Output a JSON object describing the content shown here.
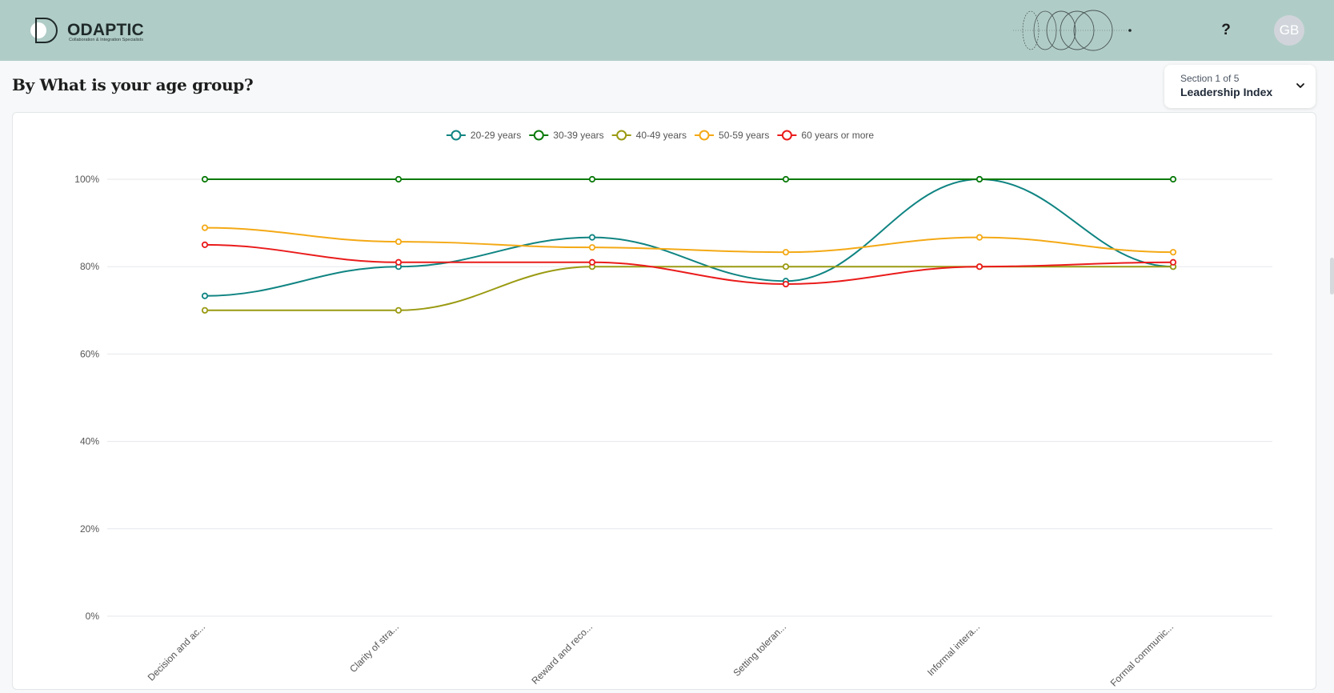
{
  "header": {
    "logo_text": "ODAPTIC",
    "logo_tagline": "Collaboration & Integration Specialists",
    "help_label": "?",
    "avatar_initials": "GB"
  },
  "page": {
    "title": "By What is your age group?"
  },
  "section_selector": {
    "subtitle": "Section 1 of 5",
    "value": "Leadership Index"
  },
  "chart_data": {
    "type": "line",
    "categories": [
      "Decision and ac...",
      "Clarity of stra...",
      "Reward and reco...",
      "Setting toleran...",
      "Informal intera...",
      "Formal communic..."
    ],
    "y_ticks": [
      "100%",
      "80%",
      "60%",
      "40%",
      "20%",
      "0%"
    ],
    "ylim": [
      0,
      100
    ],
    "y_unit": "%",
    "grid": true,
    "legend_position": "top",
    "smooth": true,
    "series": [
      {
        "name": "20-29 years",
        "color": "#0f8482",
        "values": [
          73.3,
          80,
          86.7,
          76.7,
          100,
          80
        ]
      },
      {
        "name": "30-39 years",
        "color": "#0a7a0a",
        "values": [
          100,
          100,
          100,
          100,
          100,
          100
        ]
      },
      {
        "name": "40-49 years",
        "color": "#9a9a12",
        "values": [
          70,
          70,
          80,
          80,
          80,
          80
        ]
      },
      {
        "name": "50-59 years",
        "color": "#f4a915",
        "values": [
          88.9,
          85.7,
          84.4,
          83.3,
          86.7,
          83.3
        ]
      },
      {
        "name": "60 years or more",
        "color": "#ea1b1b",
        "values": [
          85,
          81,
          81,
          76,
          80,
          81
        ]
      }
    ]
  }
}
